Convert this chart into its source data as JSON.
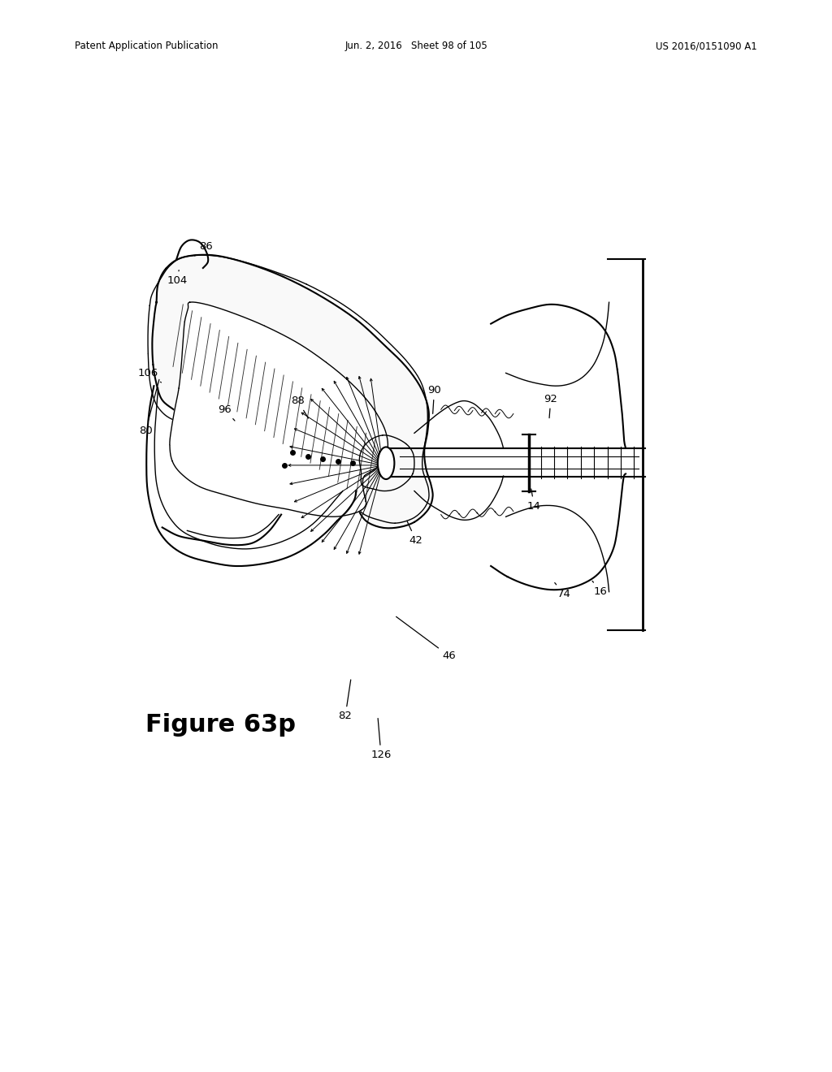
{
  "header_left": "Patent Application Publication",
  "header_center": "Jun. 2, 2016   Sheet 98 of 105",
  "header_right": "US 2016/0151090 A1",
  "figure_label": "Figure 63p",
  "bg_color": "#ffffff",
  "line_color": "#000000",
  "lw_main": 1.5,
  "lw_thin": 1.0
}
